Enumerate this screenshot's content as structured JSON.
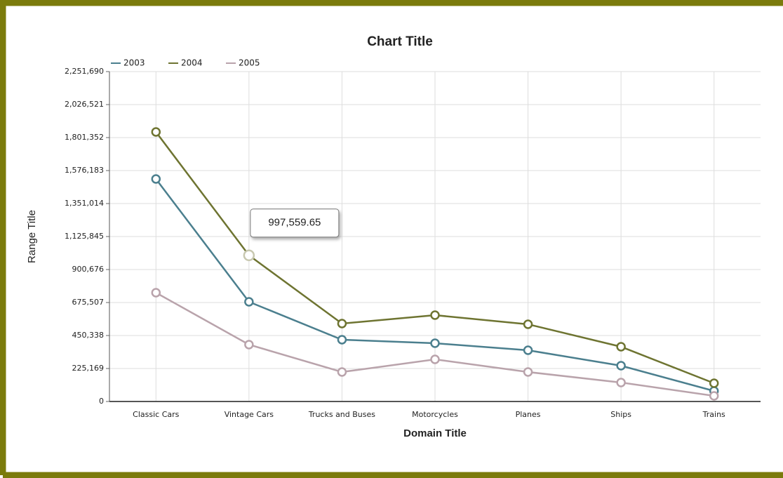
{
  "chart_data": {
    "type": "line",
    "title": "Chart Title",
    "x_label": "Domain Title",
    "y_label": "Range Title",
    "categories": [
      "Classic Cars",
      "Vintage Cars",
      "Trucks and Buses",
      "Motorcycles",
      "Planes",
      "Ships",
      "Trains"
    ],
    "series": [
      {
        "name": "2003",
        "color": "#4b7f8e",
        "values": [
          1518700,
          680300,
          421600,
          397700,
          349700,
          244300,
          71900
        ]
      },
      {
        "name": "2004",
        "color": "#6e7431",
        "values": [
          1839700,
          997559.65,
          531800,
          589300,
          527000,
          373700,
          124600
        ],
        "value_labels": [
          null,
          "997,559.65",
          null,
          null,
          null,
          null,
          null
        ]
      },
      {
        "name": "2005",
        "color": "#b9a3ab",
        "values": [
          742600,
          388100,
          201200,
          287500,
          201200,
          129400,
          38300
        ]
      }
    ],
    "ylim": [
      0,
      2251690
    ],
    "yticks": [
      0,
      {
        "value": 225169,
        "label": "225,169"
      },
      {
        "value": 450338,
        "label": "450,338"
      },
      {
        "value": 675507,
        "label": "675,507"
      },
      {
        "value": 900676,
        "label": "900,676"
      },
      {
        "value": 1125845,
        "label": "1,125,845"
      },
      {
        "value": 1351014,
        "label": "1,351,014"
      },
      {
        "value": 1576183,
        "label": "1,576,183"
      },
      {
        "value": 1801352,
        "label": "1,801,352"
      },
      {
        "value": 2026521,
        "label": "2,026,521"
      },
      {
        "value": 2251690,
        "label": "2,251,690"
      }
    ],
    "grid": true,
    "legend": "top-left"
  }
}
